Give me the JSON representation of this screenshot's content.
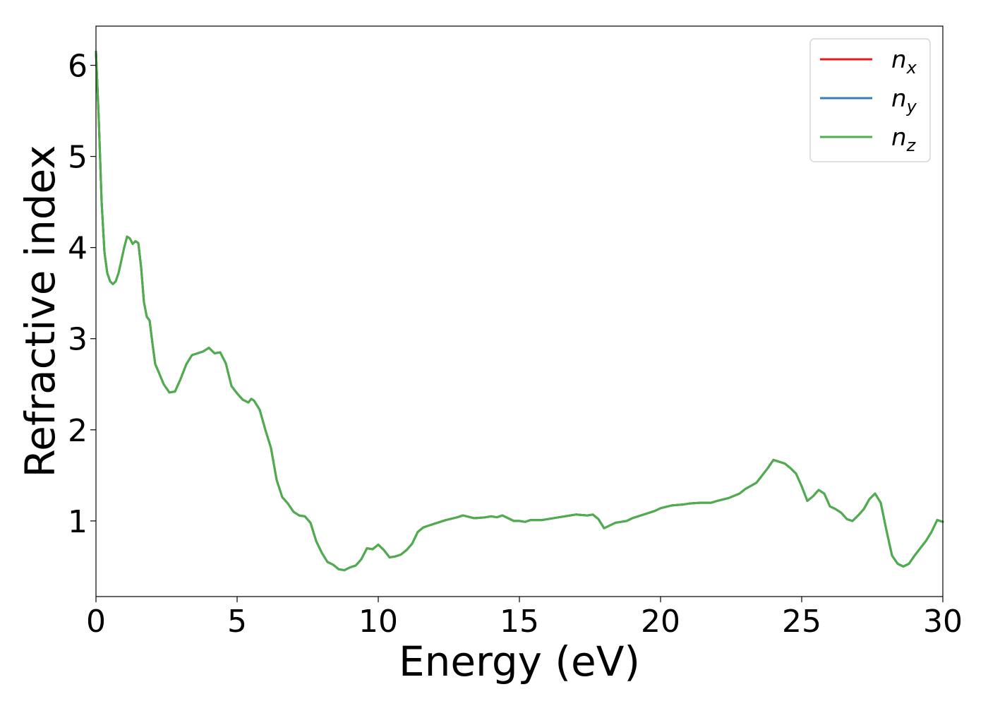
{
  "chart_data": {
    "type": "line",
    "title": "",
    "xlabel": "Energy (eV)",
    "ylabel": "Refractive index",
    "xlim": [
      0,
      30
    ],
    "ylim": [
      0.17,
      6.43
    ],
    "xticks": [
      0,
      5,
      10,
      15,
      20,
      25,
      30
    ],
    "xtick_labels": [
      "0",
      "5",
      "10",
      "15",
      "20",
      "25",
      "30"
    ],
    "yticks": [
      1,
      2,
      3,
      4,
      5,
      6
    ],
    "ytick_labels": [
      "1",
      "2",
      "3",
      "4",
      "5",
      "6"
    ],
    "grid": false,
    "legend_position": "top-right",
    "x": [
      0,
      0.1,
      0.2,
      0.3,
      0.4,
      0.5,
      0.6,
      0.7,
      0.8,
      0.9,
      1.0,
      1.1,
      1.2,
      1.3,
      1.4,
      1.5,
      1.6,
      1.7,
      1.8,
      1.9,
      2.0,
      2.1,
      2.2,
      2.4,
      2.6,
      2.8,
      3.0,
      3.2,
      3.4,
      3.6,
      3.8,
      4.0,
      4.1,
      4.2,
      4.4,
      4.6,
      4.8,
      5.0,
      5.2,
      5.4,
      5.5,
      5.6,
      5.8,
      6.0,
      6.2,
      6.4,
      6.6,
      6.8,
      7.0,
      7.2,
      7.4,
      7.6,
      7.8,
      8.0,
      8.2,
      8.4,
      8.6,
      8.8,
      9.0,
      9.2,
      9.4,
      9.6,
      9.8,
      10.0,
      10.2,
      10.4,
      10.6,
      10.8,
      11.0,
      11.2,
      11.4,
      11.6,
      11.8,
      12.0,
      12.4,
      12.8,
      13.0,
      13.4,
      13.8,
      14.0,
      14.2,
      14.4,
      14.6,
      14.8,
      15.0,
      15.2,
      15.4,
      15.8,
      16.0,
      16.4,
      16.8,
      17.0,
      17.4,
      17.6,
      17.8,
      18.0,
      18.2,
      18.4,
      18.6,
      18.8,
      19.0,
      19.4,
      19.8,
      20.0,
      20.4,
      20.8,
      21.0,
      21.4,
      21.8,
      22.0,
      22.4,
      22.8,
      23.0,
      23.4,
      23.8,
      24.0,
      24.4,
      24.6,
      24.8,
      25.0,
      25.2,
      25.4,
      25.6,
      25.8,
      26.0,
      26.2,
      26.4,
      26.6,
      26.8,
      27.0,
      27.2,
      27.4,
      27.6,
      27.8,
      28.0,
      28.2,
      28.4,
      28.6,
      28.8,
      29.0,
      29.2,
      29.4,
      29.6,
      29.8,
      30.0
    ],
    "series": [
      {
        "name": "n_x",
        "color": "#e41a1c",
        "values": [
          6.15,
          5.4,
          4.5,
          3.95,
          3.72,
          3.63,
          3.6,
          3.63,
          3.72,
          3.86,
          4.0,
          4.12,
          4.1,
          4.04,
          4.07,
          4.05,
          3.78,
          3.4,
          3.24,
          3.2,
          2.95,
          2.72,
          2.65,
          2.5,
          2.41,
          2.42,
          2.56,
          2.72,
          2.82,
          2.84,
          2.86,
          2.9,
          2.87,
          2.84,
          2.85,
          2.73,
          2.48,
          2.4,
          2.33,
          2.3,
          2.34,
          2.32,
          2.22,
          2.0,
          1.8,
          1.45,
          1.26,
          1.19,
          1.1,
          1.06,
          1.05,
          0.98,
          0.78,
          0.65,
          0.55,
          0.52,
          0.47,
          0.46,
          0.49,
          0.51,
          0.58,
          0.7,
          0.69,
          0.74,
          0.68,
          0.6,
          0.61,
          0.63,
          0.68,
          0.75,
          0.88,
          0.93,
          0.95,
          0.97,
          1.01,
          1.04,
          1.06,
          1.03,
          1.04,
          1.05,
          1.04,
          1.06,
          1.03,
          1.0,
          1.0,
          0.99,
          1.01,
          1.01,
          1.02,
          1.04,
          1.06,
          1.07,
          1.06,
          1.07,
          1.02,
          0.92,
          0.95,
          0.98,
          0.99,
          1.0,
          1.03,
          1.07,
          1.11,
          1.14,
          1.17,
          1.18,
          1.19,
          1.2,
          1.2,
          1.22,
          1.25,
          1.3,
          1.35,
          1.42,
          1.58,
          1.67,
          1.63,
          1.58,
          1.52,
          1.38,
          1.22,
          1.27,
          1.34,
          1.3,
          1.16,
          1.13,
          1.09,
          1.02,
          1.0,
          1.06,
          1.13,
          1.24,
          1.3,
          1.2,
          0.9,
          0.62,
          0.53,
          0.5,
          0.53,
          0.62,
          0.7,
          0.78,
          0.88,
          1.01,
          0.99
        ]
      },
      {
        "name": "n_y",
        "color": "#377eb8",
        "values": [
          6.15,
          5.4,
          4.5,
          3.95,
          3.72,
          3.63,
          3.6,
          3.63,
          3.72,
          3.86,
          4.0,
          4.12,
          4.1,
          4.04,
          4.07,
          4.05,
          3.78,
          3.4,
          3.24,
          3.2,
          2.95,
          2.72,
          2.65,
          2.5,
          2.41,
          2.42,
          2.56,
          2.72,
          2.82,
          2.84,
          2.86,
          2.9,
          2.87,
          2.84,
          2.85,
          2.73,
          2.48,
          2.4,
          2.33,
          2.3,
          2.34,
          2.32,
          2.22,
          2.0,
          1.8,
          1.45,
          1.26,
          1.19,
          1.1,
          1.06,
          1.05,
          0.98,
          0.78,
          0.65,
          0.55,
          0.52,
          0.47,
          0.46,
          0.49,
          0.51,
          0.58,
          0.7,
          0.69,
          0.74,
          0.68,
          0.6,
          0.61,
          0.63,
          0.68,
          0.75,
          0.88,
          0.93,
          0.95,
          0.97,
          1.01,
          1.04,
          1.06,
          1.03,
          1.04,
          1.05,
          1.04,
          1.06,
          1.03,
          1.0,
          1.0,
          0.99,
          1.01,
          1.01,
          1.02,
          1.04,
          1.06,
          1.07,
          1.06,
          1.07,
          1.02,
          0.92,
          0.95,
          0.98,
          0.99,
          1.0,
          1.03,
          1.07,
          1.11,
          1.14,
          1.17,
          1.18,
          1.19,
          1.2,
          1.2,
          1.22,
          1.25,
          1.3,
          1.35,
          1.42,
          1.58,
          1.67,
          1.63,
          1.58,
          1.52,
          1.38,
          1.22,
          1.27,
          1.34,
          1.3,
          1.16,
          1.13,
          1.09,
          1.02,
          1.0,
          1.06,
          1.13,
          1.24,
          1.3,
          1.2,
          0.9,
          0.62,
          0.53,
          0.5,
          0.53,
          0.62,
          0.7,
          0.78,
          0.88,
          1.01,
          0.99
        ]
      },
      {
        "name": "n_z",
        "color": "#4daf4a",
        "values": [
          6.15,
          5.4,
          4.5,
          3.95,
          3.72,
          3.63,
          3.6,
          3.63,
          3.72,
          3.86,
          4.0,
          4.12,
          4.1,
          4.04,
          4.07,
          4.05,
          3.78,
          3.4,
          3.24,
          3.2,
          2.95,
          2.72,
          2.65,
          2.5,
          2.41,
          2.42,
          2.56,
          2.72,
          2.82,
          2.84,
          2.86,
          2.9,
          2.87,
          2.84,
          2.85,
          2.73,
          2.48,
          2.4,
          2.33,
          2.3,
          2.34,
          2.32,
          2.22,
          2.0,
          1.8,
          1.45,
          1.26,
          1.19,
          1.1,
          1.06,
          1.05,
          0.98,
          0.78,
          0.65,
          0.55,
          0.52,
          0.47,
          0.46,
          0.49,
          0.51,
          0.58,
          0.7,
          0.69,
          0.74,
          0.68,
          0.6,
          0.61,
          0.63,
          0.68,
          0.75,
          0.88,
          0.93,
          0.95,
          0.97,
          1.01,
          1.04,
          1.06,
          1.03,
          1.04,
          1.05,
          1.04,
          1.06,
          1.03,
          1.0,
          1.0,
          0.99,
          1.01,
          1.01,
          1.02,
          1.04,
          1.06,
          1.07,
          1.06,
          1.07,
          1.02,
          0.92,
          0.95,
          0.98,
          0.99,
          1.0,
          1.03,
          1.07,
          1.11,
          1.14,
          1.17,
          1.18,
          1.19,
          1.2,
          1.2,
          1.22,
          1.25,
          1.3,
          1.35,
          1.42,
          1.58,
          1.67,
          1.63,
          1.58,
          1.52,
          1.38,
          1.22,
          1.27,
          1.34,
          1.3,
          1.16,
          1.13,
          1.09,
          1.02,
          1.0,
          1.06,
          1.13,
          1.24,
          1.3,
          1.2,
          0.9,
          0.62,
          0.53,
          0.5,
          0.53,
          0.62,
          0.7,
          0.78,
          0.88,
          1.01,
          0.99
        ]
      }
    ],
    "legend": [
      {
        "base": "n",
        "sub": "x",
        "color": "#e41a1c"
      },
      {
        "base": "n",
        "sub": "y",
        "color": "#377eb8"
      },
      {
        "base": "n",
        "sub": "z",
        "color": "#4daf4a"
      }
    ]
  }
}
